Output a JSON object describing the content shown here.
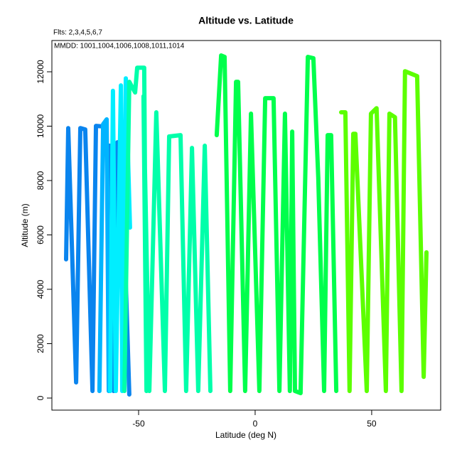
{
  "chart_data": {
    "type": "line",
    "title": "Altitude vs. Latitude",
    "annotations": [
      "Flts: 2,3,4,5,6,7",
      "MMDD: 1001,1004,1006,1008,1011,1014"
    ],
    "x_label": "Latitude (deg N)",
    "y_label": "Altitude (m)",
    "xlim": [
      -87.2,
      79.6
    ],
    "ylim": [
      -444,
      13150
    ],
    "xticks": [
      -50,
      0,
      50
    ],
    "yticks": [
      0,
      2000,
      4000,
      6000,
      8000,
      10000,
      12000
    ],
    "series": [
      {
        "color": "#0a84ee",
        "x": [
          -81.1,
          -80.2,
          -76.8,
          -75,
          -72.9,
          -69.8,
          -68.3,
          -65.2,
          -63.7,
          -61.9,
          -60.7,
          -59.1,
          -57,
          -54
        ],
        "values": [
          5100,
          9930,
          575,
          9930,
          9880,
          260,
          10010,
          9990,
          9280,
          9280,
          260,
          9410,
          8500,
          130
        ]
      },
      {
        "color": "#00b4ff",
        "x": [
          -66.8,
          -65.2,
          -63.7,
          -62.8
        ],
        "values": [
          260,
          10070,
          10250,
          260
        ]
      },
      {
        "color": "#00eeff",
        "x": [
          -62.2,
          -61,
          -59.8,
          -57.6,
          -57,
          -55.5,
          -53.7
        ],
        "values": [
          260,
          11300,
          260,
          11500,
          260,
          11760,
          6270
        ]
      },
      {
        "color": "#00ffaa",
        "x": [
          -56.1,
          -54,
          -51.5,
          -50.6,
          -47.6,
          -46.6,
          -47.9,
          -45.4,
          -42.4,
          -38.7,
          -36.9,
          -32,
          -29.6,
          -27.1,
          -24.4,
          -21.6,
          -19.2
        ],
        "values": [
          260,
          11630,
          11240,
          12150,
          12150,
          260,
          11100,
          260,
          10510,
          260,
          9620,
          9670,
          260,
          9200,
          260,
          9280,
          260
        ]
      },
      {
        "color": "#00ff4c",
        "x": [
          -16.5,
          -14.6,
          -13.1,
          -10.7,
          -8.2,
          -7.3,
          -4.3,
          -1.8,
          1.8,
          4.3,
          7.9,
          10.4,
          12.8,
          14.9,
          15.9,
          17.1,
          19.5,
          22.6,
          25,
          27.1,
          29.6,
          31.1,
          32.6,
          34.8
        ],
        "values": [
          9670,
          12600,
          12550,
          260,
          11630,
          11630,
          260,
          10460,
          260,
          11030,
          11030,
          260,
          10460,
          260,
          9800,
          260,
          180,
          12550,
          12500,
          8100,
          260,
          9670,
          9670,
          260
        ]
      },
      {
        "color": "#5cff00",
        "x": [
          36.9,
          38.7,
          40.5,
          42.1,
          43,
          47.9,
          49.7,
          52.1,
          56.1,
          57.6,
          60,
          62.8,
          64.3,
          69.5,
          72.3,
          73.5
        ],
        "values": [
          10510,
          10510,
          260,
          9720,
          9720,
          260,
          10460,
          10660,
          260,
          10460,
          10330,
          260,
          12020,
          11840,
          780,
          5360
        ]
      }
    ]
  }
}
